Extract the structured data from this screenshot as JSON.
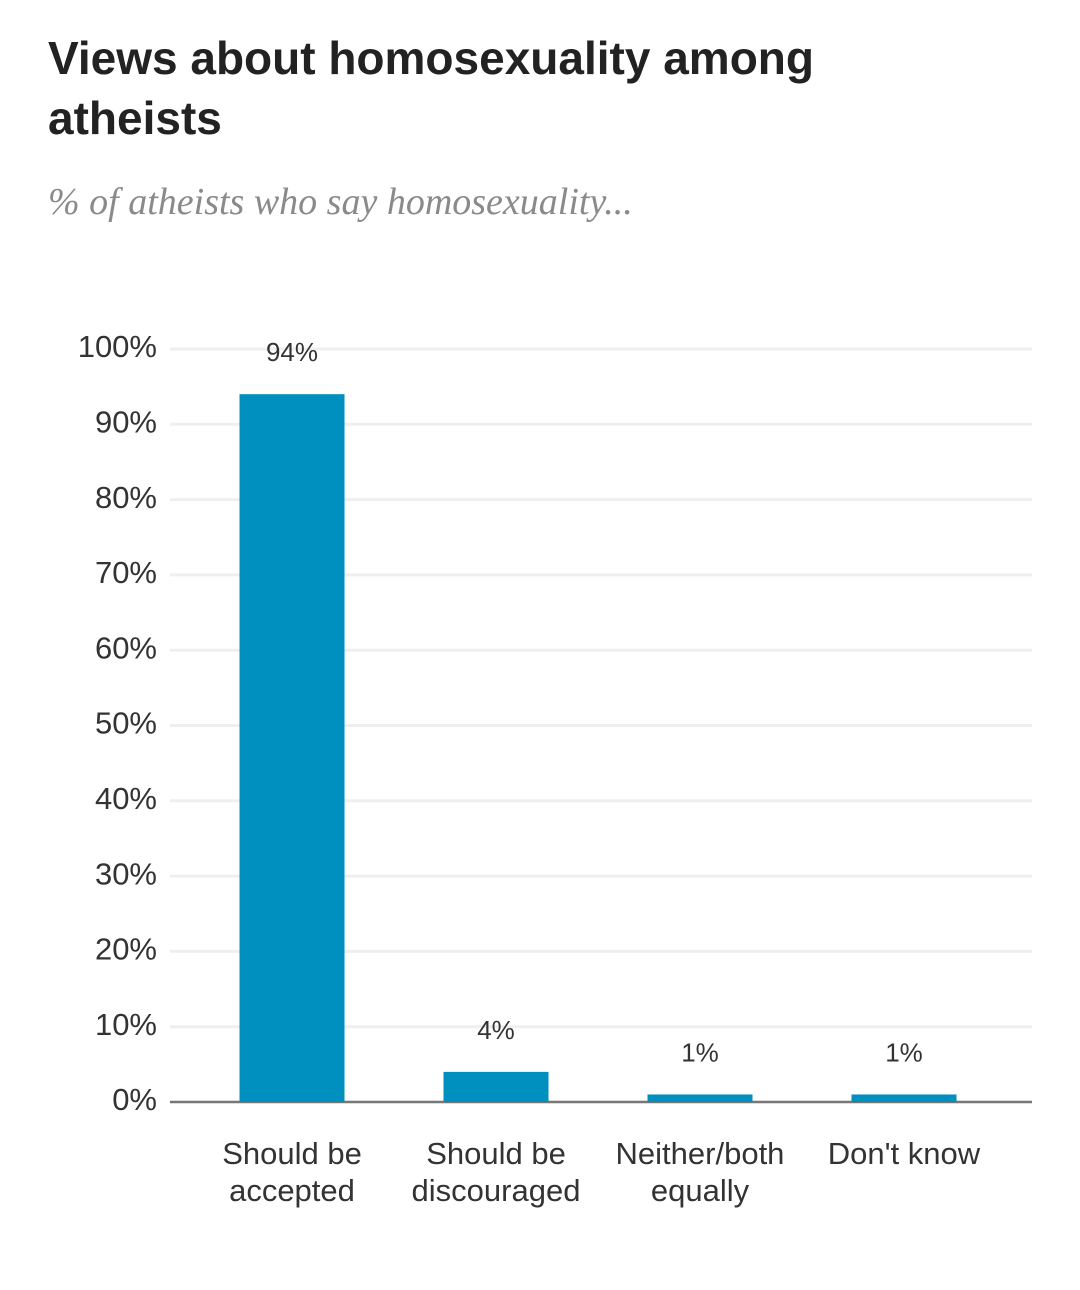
{
  "chart_data": {
    "type": "bar",
    "title": "Views about homosexuality among atheists",
    "subtitle": "% of atheists who say homosexuality...",
    "categories": [
      "Should be accepted",
      "Should be discouraged",
      "Neither/both equally",
      "Don't know"
    ],
    "values": [
      94,
      4,
      1,
      1
    ],
    "value_labels": [
      "94%",
      "4%",
      "1%",
      "1%"
    ],
    "color": "#0090bf",
    "ylim": [
      0,
      100
    ],
    "yticks": [
      {
        "value": 0,
        "label": "0%"
      },
      {
        "value": 10,
        "label": "10%"
      },
      {
        "value": 20,
        "label": "20%"
      },
      {
        "value": 30,
        "label": "30%"
      },
      {
        "value": 40,
        "label": "40%"
      },
      {
        "value": 50,
        "label": "50%"
      },
      {
        "value": 60,
        "label": "60%"
      },
      {
        "value": 70,
        "label": "70%"
      },
      {
        "value": 80,
        "label": "80%"
      },
      {
        "value": 90,
        "label": "90%"
      },
      {
        "value": 100,
        "label": "100%"
      }
    ],
    "grid": true
  }
}
